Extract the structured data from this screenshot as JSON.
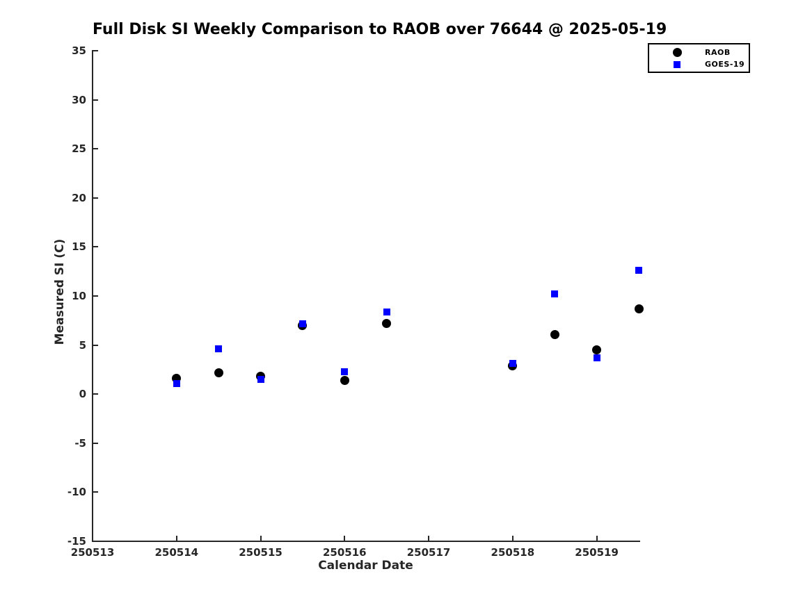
{
  "chart_data": {
    "type": "scatter",
    "title": "Full Disk SI Weekly Comparison to RAOB over 76644 @ 2025-05-19",
    "xlabel": "Calendar Date",
    "ylabel": "Measured SI (C)",
    "xlim": [
      250513,
      250519.5
    ],
    "ylim": [
      -15,
      35
    ],
    "xticks": [
      250513,
      250514,
      250515,
      250516,
      250517,
      250518,
      250519
    ],
    "yticks": [
      -15,
      -10,
      -5,
      0,
      5,
      10,
      15,
      20,
      25,
      30,
      35
    ],
    "grid": false,
    "axis_color": "#262626",
    "background_color": "#ffffff",
    "legend_position": "top-right",
    "series": [
      {
        "name": "RAOB",
        "marker": "circle",
        "color": "#000000",
        "points": [
          [
            250514.0,
            1.6
          ],
          [
            250514.5,
            2.2
          ],
          [
            250515.0,
            1.8
          ],
          [
            250515.5,
            7.0
          ],
          [
            250516.0,
            1.4
          ],
          [
            250516.5,
            7.2
          ],
          [
            250518.0,
            2.9
          ],
          [
            250518.5,
            6.1
          ],
          [
            250519.0,
            4.5
          ],
          [
            250519.5,
            8.7
          ]
        ]
      },
      {
        "name": "GOES-19",
        "marker": "square",
        "color": "#0000ff",
        "points": [
          [
            250514.0,
            1.1
          ],
          [
            250514.5,
            4.6
          ],
          [
            250515.0,
            1.5
          ],
          [
            250515.5,
            7.2
          ],
          [
            250516.0,
            2.3
          ],
          [
            250516.5,
            8.4
          ],
          [
            250518.0,
            3.1
          ],
          [
            250518.5,
            10.2
          ],
          [
            250519.0,
            3.7
          ],
          [
            250519.5,
            12.6
          ]
        ]
      }
    ]
  }
}
